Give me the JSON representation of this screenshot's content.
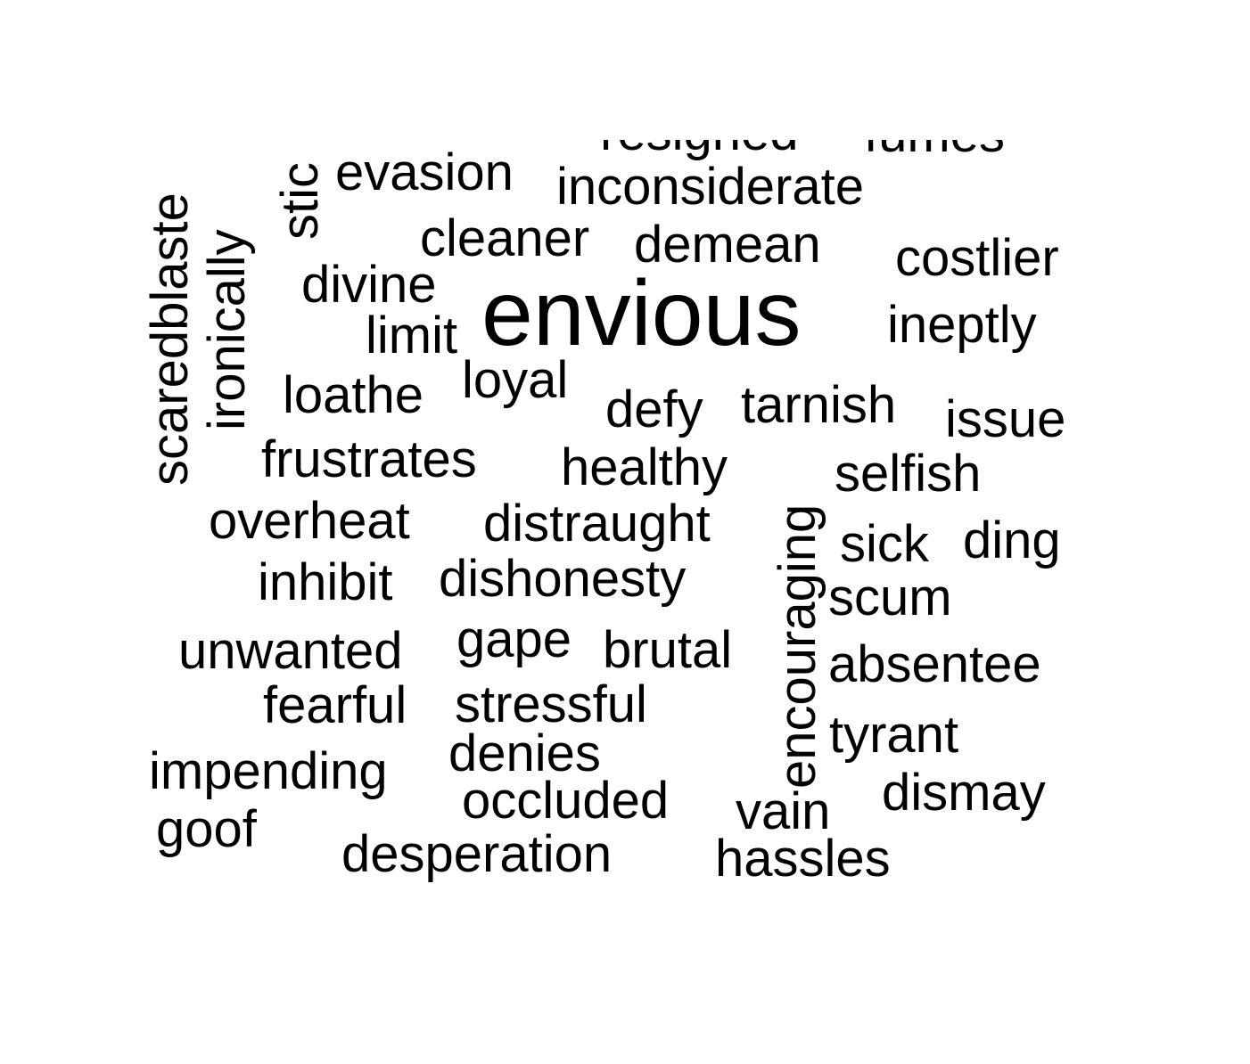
{
  "colors": {
    "background": "#ffffff",
    "text": "#000000"
  },
  "word_cloud": {
    "words": [
      {
        "text": "envious",
        "orientation": "horizontal"
      },
      {
        "text": "resigned",
        "orientation": "horizontal"
      },
      {
        "text": "fumes",
        "orientation": "horizontal"
      },
      {
        "text": "evasion",
        "orientation": "horizontal"
      },
      {
        "text": "inconsiderate",
        "orientation": "horizontal"
      },
      {
        "text": "cleaner",
        "orientation": "horizontal"
      },
      {
        "text": "demean",
        "orientation": "horizontal"
      },
      {
        "text": "costlier",
        "orientation": "horizontal"
      },
      {
        "text": "divine",
        "orientation": "horizontal"
      },
      {
        "text": "limit",
        "orientation": "horizontal"
      },
      {
        "text": "ineptly",
        "orientation": "horizontal"
      },
      {
        "text": "loathe",
        "orientation": "horizontal"
      },
      {
        "text": "loyal",
        "orientation": "horizontal"
      },
      {
        "text": "defy",
        "orientation": "horizontal"
      },
      {
        "text": "tarnish",
        "orientation": "horizontal"
      },
      {
        "text": "issue",
        "orientation": "horizontal"
      },
      {
        "text": "frustrates",
        "orientation": "horizontal"
      },
      {
        "text": "healthy",
        "orientation": "horizontal"
      },
      {
        "text": "selfish",
        "orientation": "horizontal"
      },
      {
        "text": "overheat",
        "orientation": "horizontal"
      },
      {
        "text": "distraught",
        "orientation": "horizontal"
      },
      {
        "text": "sick",
        "orientation": "horizontal"
      },
      {
        "text": "ding",
        "orientation": "horizontal"
      },
      {
        "text": "inhibit",
        "orientation": "horizontal"
      },
      {
        "text": "dishonesty",
        "orientation": "horizontal"
      },
      {
        "text": "scum",
        "orientation": "horizontal"
      },
      {
        "text": "unwanted",
        "orientation": "horizontal"
      },
      {
        "text": "gape",
        "orientation": "horizontal"
      },
      {
        "text": "brutal",
        "orientation": "horizontal"
      },
      {
        "text": "absentee",
        "orientation": "horizontal"
      },
      {
        "text": "fearful",
        "orientation": "horizontal"
      },
      {
        "text": "stressful",
        "orientation": "horizontal"
      },
      {
        "text": "tyrant",
        "orientation": "horizontal"
      },
      {
        "text": "impending",
        "orientation": "horizontal"
      },
      {
        "text": "denies",
        "orientation": "horizontal"
      },
      {
        "text": "dismay",
        "orientation": "horizontal"
      },
      {
        "text": "occluded",
        "orientation": "horizontal"
      },
      {
        "text": "vain",
        "orientation": "horizontal"
      },
      {
        "text": "goof",
        "orientation": "horizontal"
      },
      {
        "text": "desperation",
        "orientation": "horizontal"
      },
      {
        "text": "hassles",
        "orientation": "horizontal"
      },
      {
        "text": "scaredblaste",
        "orientation": "vertical"
      },
      {
        "text": "ironically",
        "orientation": "vertical"
      },
      {
        "text": "stic",
        "orientation": "vertical"
      },
      {
        "text": "encouraging",
        "orientation": "vertical"
      }
    ]
  }
}
